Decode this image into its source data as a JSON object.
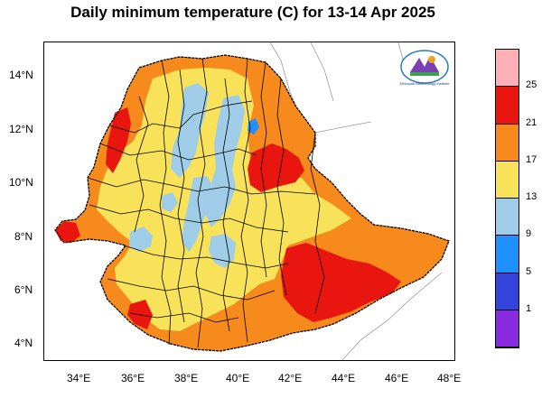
{
  "title": "Daily minimum temperature (C) for 13-14 Apr 2025",
  "lat_labels": [
    "14°N",
    "12°N",
    "10°N",
    "8°N",
    "6°N",
    "4°N"
  ],
  "lon_labels": [
    "34°E",
    "36°E",
    "38°E",
    "40°E",
    "42°E",
    "44°E",
    "46°E",
    "48°E"
  ],
  "legend": {
    "boundaries": [
      "1",
      "5",
      "9",
      "13",
      "17",
      "21",
      "25"
    ],
    "colors": [
      "#8a2be2",
      "#3344dd",
      "#1e90ff",
      "#9fcde8",
      "#f7e25a",
      "#f78a1c",
      "#e8160f",
      "#ffb0b6"
    ]
  },
  "colors": {
    "class_9_13": "#9fcde8",
    "class_13_17": "#f7e25a",
    "class_17_21": "#f78a1c",
    "class_21_25": "#e8160f"
  },
  "logo_text": "Ethiopian Meteorology Institute"
}
